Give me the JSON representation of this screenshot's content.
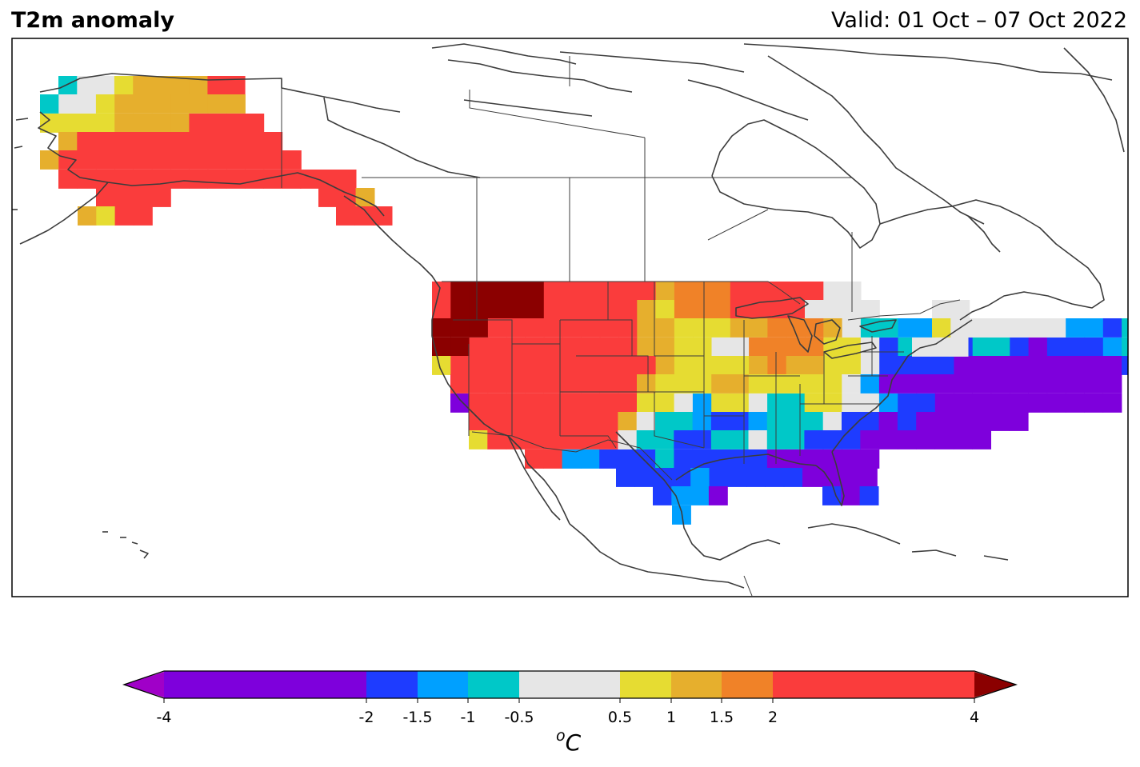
{
  "header": {
    "title": "T2m anomaly",
    "valid": "Valid: 01 Oct – 07 Oct 2022"
  },
  "colorbar": {
    "unit_base": "o",
    "unit_main": "C",
    "bounds": [
      -4,
      -2,
      -1.5,
      -1,
      -0.5,
      0.5,
      1,
      1.5,
      2,
      4
    ],
    "tick_labels": [
      "-4",
      "-2",
      "-1.5",
      "-1",
      "-0.5",
      "0.5",
      "1",
      "1.5",
      "2",
      "4"
    ],
    "colors": [
      "#7e00dc",
      "#1e3cff",
      "#00a0ff",
      "#00c8c8",
      "#e6e6e6",
      "#e6dc32",
      "#e6af2d",
      "#f08228",
      "#fa3c3c"
    ],
    "under_color": "#a000c8",
    "over_color": "#8b0000"
  },
  "legend_colors": {
    "coast": "#3c3c3c",
    "border": "#3c3c3c"
  }
}
